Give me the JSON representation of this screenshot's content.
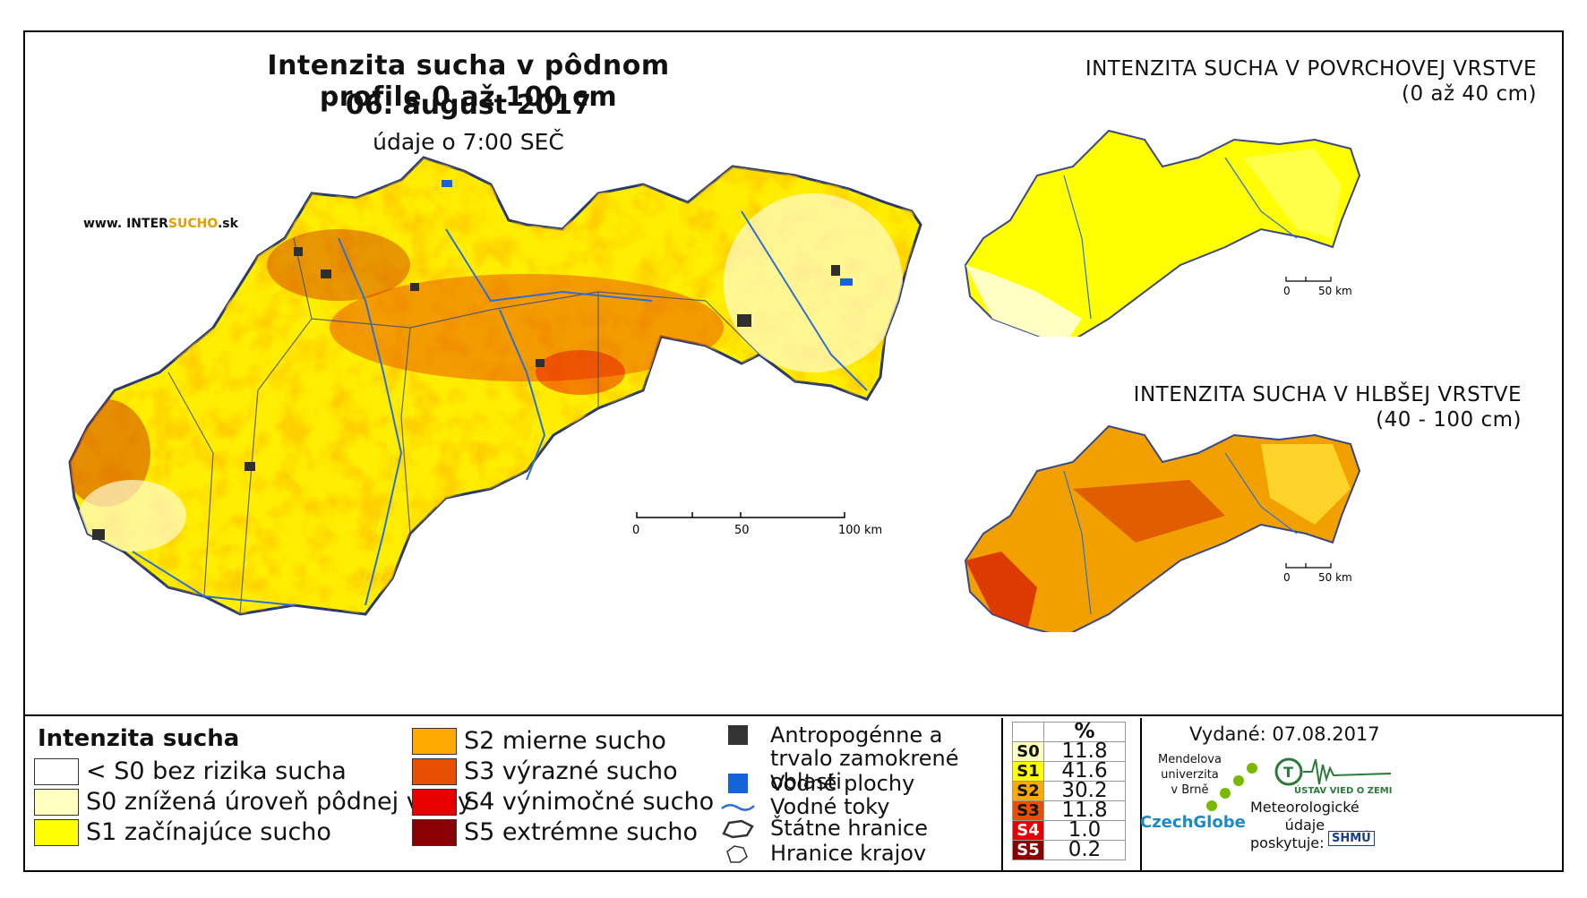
{
  "header": {
    "title": "Intenzita sucha v pôdnom profile 0 až 100 cm",
    "date": "06. august 2017",
    "time": "údaje o 7:00 SEČ",
    "website_prefix": "www. INTER",
    "website_highlight": "SUCHO",
    "website_suffix": ".sk"
  },
  "insets": {
    "surface": {
      "title": "INTENZITA SUCHA V POVRCHOVEJ VRSTVE",
      "subtitle": "(0 až 40 cm)"
    },
    "deep": {
      "title": "INTENZITA SUCHA V HLBŠEJ VRSTVE",
      "subtitle": "(40 - 100 cm)"
    }
  },
  "scalebars": {
    "main": {
      "labels": [
        "0",
        "50",
        "100 km"
      ]
    },
    "inset": {
      "labels": [
        "0",
        "50 km"
      ]
    }
  },
  "legend": {
    "heading": "Intenzita sucha",
    "classes": [
      {
        "label": "< S0 bez rizika sucha",
        "color": "#ffffff"
      },
      {
        "label": "S0 znížená úroveň pôdnej vlahy",
        "color": "#ffffc0"
      },
      {
        "label": "S1 začínajúce sucho",
        "color": "#ffff00"
      },
      {
        "label": "S2 mierne sucho",
        "color": "#ffaa00"
      },
      {
        "label": "S3 výrazné sucho",
        "color": "#e65000"
      },
      {
        "label": "S4 výnimočné sucho",
        "color": "#e60000"
      },
      {
        "label": "S5 extrémne sucho",
        "color": "#8b0000"
      }
    ],
    "symbols": [
      {
        "label": "Antropogénne a trvalo zamokrené oblasti",
        "icon": "dark-square-icon"
      },
      {
        "label": "Vodné plochy",
        "icon": "blue-square-icon"
      },
      {
        "label": "Vodné toky",
        "icon": "river-line-icon"
      },
      {
        "label": "Štátne hranice",
        "icon": "state-border-icon"
      },
      {
        "label": "Hranice krajov",
        "icon": "region-border-icon"
      }
    ]
  },
  "stats": {
    "header": "%",
    "rows": [
      {
        "class": "S0",
        "value": "11.8",
        "color": "#ffffc0"
      },
      {
        "class": "S1",
        "value": "41.6",
        "color": "#ffff00"
      },
      {
        "class": "S2",
        "value": "30.2",
        "color": "#ffaa00"
      },
      {
        "class": "S3",
        "value": "11.8",
        "color": "#e65000"
      },
      {
        "class": "S4",
        "value": "1.0",
        "color": "#e60000"
      },
      {
        "class": "S5",
        "value": "0.2",
        "color": "#8b0000"
      }
    ]
  },
  "footer": {
    "issued": "Vydané: 07.08.2017",
    "mendel": [
      "Mendelova",
      "univerzita",
      "v Brně"
    ],
    "czechglobe": "CzechGlobe",
    "ustav": "ÚSTAV VIED O ZEMI",
    "meteo": [
      "Meteorologické",
      "údaje",
      "poskytuje:"
    ],
    "shmu": "SHMÚ"
  }
}
